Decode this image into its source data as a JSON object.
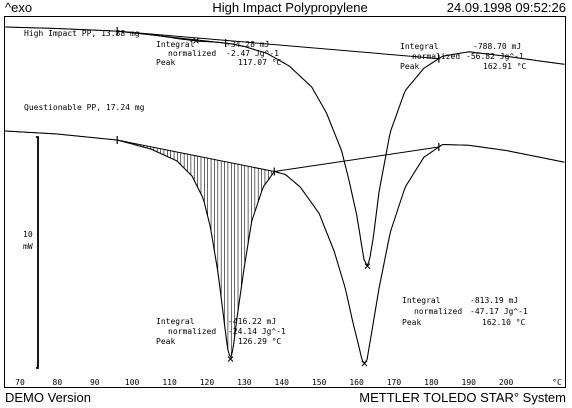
{
  "header": {
    "exo_label": "^exo",
    "title": "High Impact Polypropylene",
    "datetime": "24.09.1998 09:52:26"
  },
  "footer": {
    "left": "DEMO Version",
    "right": "METTLER TOLEDO STAR° System"
  },
  "scale_bar": {
    "value": "10",
    "unit": "mW"
  },
  "chart_data": {
    "type": "line",
    "title": "High Impact Polypropylene",
    "xlabel": "°C",
    "ylabel": "",
    "x_ticks": [
      "70",
      "80",
      "90",
      "100",
      "110",
      "120",
      "130",
      "140",
      "150",
      "160",
      "170",
      "180",
      "190",
      "200",
      "°C"
    ],
    "xlim": [
      66,
      216
    ],
    "grid": false,
    "series": [
      {
        "name": "High Impact PP, 13.88 mg",
        "x": [
          66,
          80,
          96,
          105,
          113,
          118,
          122,
          126,
          130,
          136,
          142,
          148,
          152,
          156,
          158,
          160,
          161,
          162,
          162.9,
          163.5,
          164.5,
          166,
          169,
          173,
          178,
          183,
          190,
          200,
          210,
          216
        ],
        "y_rel": [
          0.0,
          -0.2,
          -0.55,
          -1.0,
          -1.6,
          -1.9,
          -2.0,
          -2.2,
          -2.6,
          -3.5,
          -5.2,
          -8.0,
          -11.5,
          -16.5,
          -20.5,
          -25.0,
          -28.0,
          -31.0,
          -31.9,
          -31.0,
          -28.0,
          -22.0,
          -14.0,
          -8.5,
          -5.5,
          -3.9,
          -3.3,
          -3.9,
          -4.6,
          -5.0
        ],
        "annotations": [
          {
            "integral": "-34.28 mJ",
            "normalized": "-2.47 Jg^-1",
            "peak": "117.07 °C"
          },
          {
            "integral": "-788.70 mJ",
            "normalized": "-56.82 Jg^-1",
            "peak": "162.91 °C"
          }
        ]
      },
      {
        "name": "Questionable PP, 17.24 mg",
        "x": [
          66,
          80,
          96,
          105,
          112,
          116,
          119,
          121,
          123,
          124.5,
          125.5,
          126.29,
          127,
          128,
          130,
          132,
          135,
          138,
          141,
          145,
          150,
          154,
          157,
          159,
          160.5,
          161.5,
          162.1,
          162.8,
          164,
          166,
          169,
          173,
          178,
          183,
          190,
          200,
          210,
          216
        ],
        "y_rel": [
          0.0,
          -0.4,
          -1.2,
          -2.4,
          -4.0,
          -6.0,
          -9.0,
          -13.0,
          -19.0,
          -25.0,
          -29.0,
          -30.4,
          -29.0,
          -25.0,
          -18.0,
          -12.0,
          -7.5,
          -5.4,
          -5.8,
          -7.5,
          -11.0,
          -16.0,
          -21.0,
          -25.5,
          -28.5,
          -30.6,
          -31.0,
          -30.5,
          -27.0,
          -21.0,
          -13.5,
          -7.5,
          -3.5,
          -1.8,
          -1.9,
          -2.6,
          -3.6,
          -4.2
        ],
        "annotations": [
          {
            "integral": "-416.22 mJ",
            "normalized": "-24.14 Jg^-1",
            "peak": "126.29 °C"
          },
          {
            "integral": "-813.19 mJ",
            "normalized": "-47.17 Jg^-1",
            "peak": "162.10 °C"
          }
        ]
      }
    ],
    "annotation_labels": {
      "integral": "Integral",
      "normalized": "normalized",
      "peak": "Peak"
    }
  }
}
